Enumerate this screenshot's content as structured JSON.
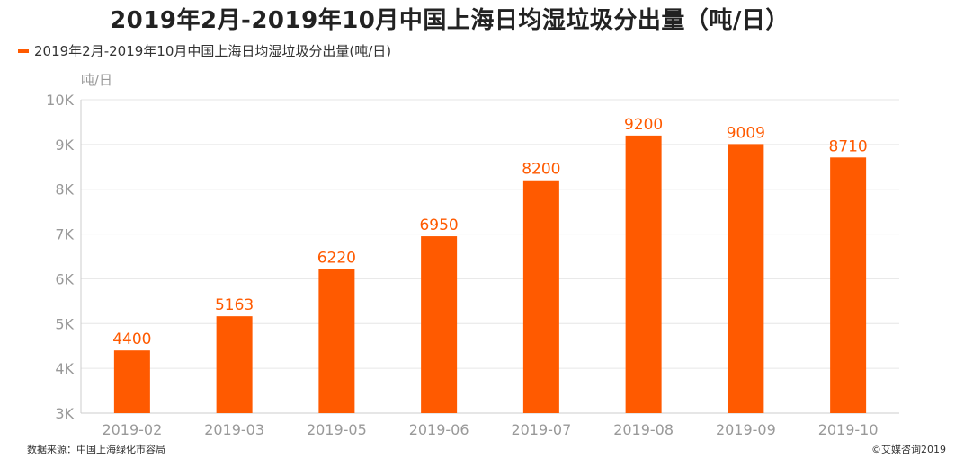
{
  "title": "2019年2月-2019年10月中国上海日均湿垃圾分出量（吨/日）",
  "legend_label": "2019年2月-2019年10月中国上海日均湿垃圾分出量(吨/日)",
  "footer": {
    "source": "数据来源：中国上海绿化市容局",
    "copyright": "©艾媒咨询2019"
  },
  "colors": {
    "bar": "#ff5a00",
    "label": "#ff5a00",
    "axis_text": "#999999",
    "grid": "#e6e6e6"
  },
  "chart_data": {
    "type": "bar",
    "ylabel": "吨/日",
    "xlabel": "",
    "ylim": [
      3000,
      10000
    ],
    "y_ticks": [
      3000,
      4000,
      5000,
      6000,
      7000,
      8000,
      9000,
      10000
    ],
    "y_tick_labels": [
      "3K",
      "4K",
      "5K",
      "6K",
      "7K",
      "8K",
      "9K",
      "10K"
    ],
    "grid": true,
    "legend_position": "top-left",
    "categories": [
      "2019-02",
      "2019-03",
      "2019-05",
      "2019-06",
      "2019-07",
      "2019-08",
      "2019-09",
      "2019-10"
    ],
    "series": [
      {
        "name": "2019年2月-2019年10月中国上海日均湿垃圾分出量(吨/日)",
        "values": [
          4400,
          5163,
          6220,
          6950,
          8200,
          9200,
          9009,
          8710
        ]
      }
    ]
  }
}
